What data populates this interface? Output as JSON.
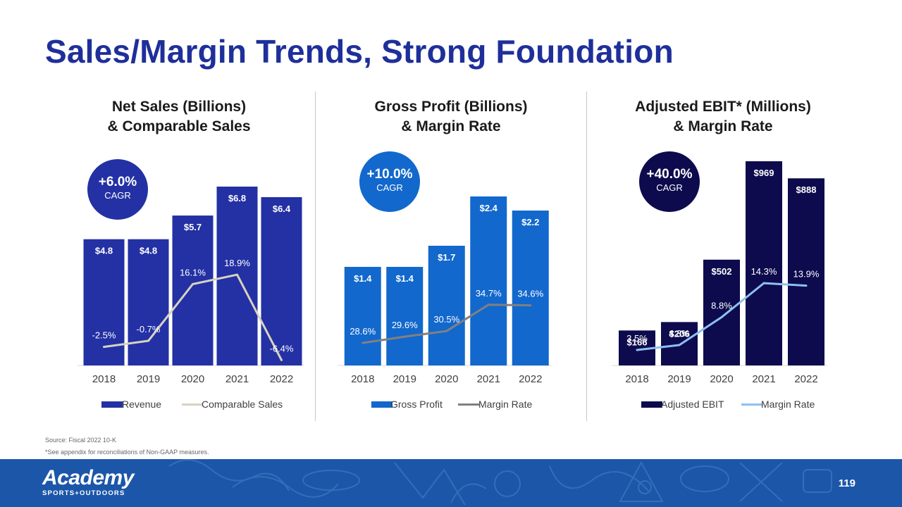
{
  "title": "Sales/Margin Trends, Strong Foundation",
  "colors": {
    "title": "#1f2f9a",
    "revenue": "#2331a4",
    "comparable": "#d8d2c0",
    "gross_profit": "#1268cc",
    "gp_margin": "#808080",
    "ebit": "#0d0b4d",
    "ebit_margin": "#8ec0f2",
    "footer": "#1c56a8"
  },
  "chart_data": [
    {
      "type": "bar",
      "title": "Net Sales (Billions) & Comparable Sales",
      "title_lines": [
        "Net Sales (Billions)",
        "& Comparable Sales"
      ],
      "badge": {
        "value": "+6.0%",
        "label": "CAGR"
      },
      "categories": [
        "2018",
        "2019",
        "2020",
        "2021",
        "2022"
      ],
      "series": [
        {
          "name": "Revenue",
          "kind": "bar",
          "values": [
            4.8,
            4.8,
            5.7,
            6.8,
            6.4
          ],
          "labels": [
            "$4.8",
            "$4.8",
            "$5.7",
            "$6.8",
            "$6.4"
          ]
        },
        {
          "name": "Comparable Sales",
          "kind": "line",
          "values": [
            -2.5,
            -0.7,
            16.1,
            18.9,
            -6.4
          ],
          "labels": [
            "-2.5%",
            "-0.7%",
            "16.1%",
            "18.9%",
            "-6.4%"
          ]
        }
      ],
      "ylim": [
        0,
        6.8
      ],
      "line_ylim": [
        -8,
        45
      ]
    },
    {
      "type": "bar",
      "title": "Gross Profit (Billions) & Margin Rate",
      "title_lines": [
        "Gross Profit (Billions)",
        "& Margin Rate"
      ],
      "badge": {
        "value": "+10.0%",
        "label": "CAGR"
      },
      "categories": [
        "2018",
        "2019",
        "2020",
        "2021",
        "2022"
      ],
      "series": [
        {
          "name": "Gross Profit",
          "kind": "bar",
          "values": [
            1.4,
            1.4,
            1.7,
            2.4,
            2.2
          ],
          "labels": [
            "$1.4",
            "$1.4",
            "$1.7",
            "$2.4",
            "$2.2"
          ]
        },
        {
          "name": "Margin Rate",
          "kind": "line",
          "values": [
            28.6,
            29.6,
            30.5,
            34.7,
            34.6
          ],
          "labels": [
            "28.6%",
            "29.6%",
            "30.5%",
            "34.7%",
            "34.6%"
          ]
        }
      ],
      "ylim": [
        0,
        2.4
      ],
      "line_ylim": [
        25,
        52
      ]
    },
    {
      "type": "bar",
      "title": "Adjusted EBIT* (Millions) & Margin Rate",
      "title_lines": [
        "Adjusted EBIT* (Millions)",
        "& Margin Rate"
      ],
      "badge": {
        "value": "+40.0%",
        "label": "CAGR"
      },
      "categories": [
        "2018",
        "2019",
        "2020",
        "2021",
        "2022"
      ],
      "series": [
        {
          "name": "Adjusted EBIT",
          "kind": "bar",
          "values": [
            166,
            206,
            502,
            969,
            888
          ],
          "labels": [
            "$166",
            "$206",
            "$502",
            "$969",
            "$888"
          ]
        },
        {
          "name": "Margin Rate",
          "kind": "line",
          "values": [
            3.5,
            4.3,
            8.8,
            14.3,
            13.9
          ],
          "labels": [
            "3.5%",
            "4.3%",
            "8.8%",
            "14.3%",
            "13.9%"
          ]
        }
      ],
      "ylim": [
        0,
        969
      ],
      "line_ylim": [
        1,
        34
      ]
    }
  ],
  "footnotes": {
    "source": "Source: Fiscal 2022 10-K",
    "note": "*See appendix for reconciliations of Non-GAAP measures."
  },
  "footer": {
    "logo_name": "Academy",
    "logo_sub": "SPORTS+OUTDOORS",
    "page_number": "119"
  }
}
